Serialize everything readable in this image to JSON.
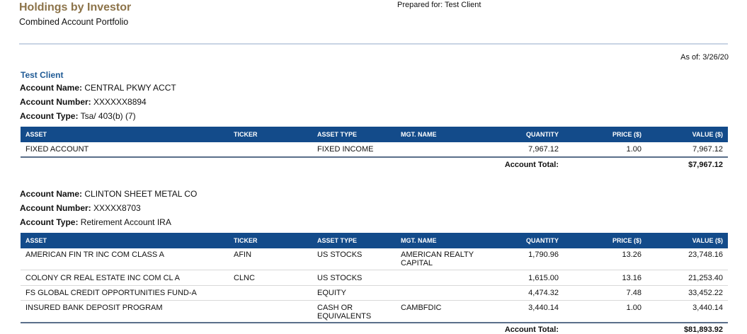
{
  "header": {
    "title": "Holdings by Investor",
    "subtitle": "Combined Account Portfolio",
    "prepared_for": "Prepared for: Test Client",
    "as_of": "As of: 3/26/20"
  },
  "client_name": "Test Client",
  "columns": [
    "ASSET",
    "TICKER",
    "ASSET TYPE",
    "MGT. NAME",
    "QUANTITY",
    "PRICE ($)",
    "VALUE ($)"
  ],
  "accounts": [
    {
      "name_label": "Account Name:",
      "name": "CENTRAL PKWY ACCT",
      "number_label": "Account Number:",
      "number": "XXXXXX8894",
      "type_label": "Account Type:",
      "type": "Tsa/ 403(b) (7)",
      "rows": [
        {
          "asset": "FIXED ACCOUNT",
          "ticker": "",
          "asset_type": "FIXED INCOME",
          "mgt_name": "",
          "quantity": "7,967.12",
          "price": "1.00",
          "value": "7,967.12"
        }
      ],
      "total_label": "Account Total:",
      "total": "$7,967.12"
    },
    {
      "name_label": "Account Name:",
      "name": "CLINTON SHEET METAL CO",
      "number_label": "Account Number:",
      "number": "XXXXX8703",
      "type_label": "Account Type:",
      "type": "Retirement Account IRA",
      "rows": [
        {
          "asset": "AMERICAN FIN TR INC COM CLASS A",
          "ticker": "AFIN",
          "asset_type": "US STOCKS",
          "mgt_name": "AMERICAN REALTY CAPITAL",
          "quantity": "1,790.96",
          "price": "13.26",
          "value": "23,748.16"
        },
        {
          "asset": "COLONY CR REAL ESTATE INC COM CL A",
          "ticker": "CLNC",
          "asset_type": "US STOCKS",
          "mgt_name": "",
          "quantity": "1,615.00",
          "price": "13.16",
          "value": "21,253.40"
        },
        {
          "asset": "FS GLOBAL CREDIT OPPORTUNITIES FUND-A",
          "ticker": "",
          "asset_type": "EQUITY",
          "mgt_name": "",
          "quantity": "4,474.32",
          "price": "7.48",
          "value": "33,452.22"
        },
        {
          "asset": "INSURED BANK DEPOSIT PROGRAM",
          "ticker": "",
          "asset_type": "CASH OR EQUIVALENTS",
          "mgt_name": "CAMBFDIC",
          "quantity": "3,440.14",
          "price": "1.00",
          "value": "3,440.14"
        }
      ],
      "total_label": "Account Total:",
      "total": "$81,893.92"
    }
  ]
}
